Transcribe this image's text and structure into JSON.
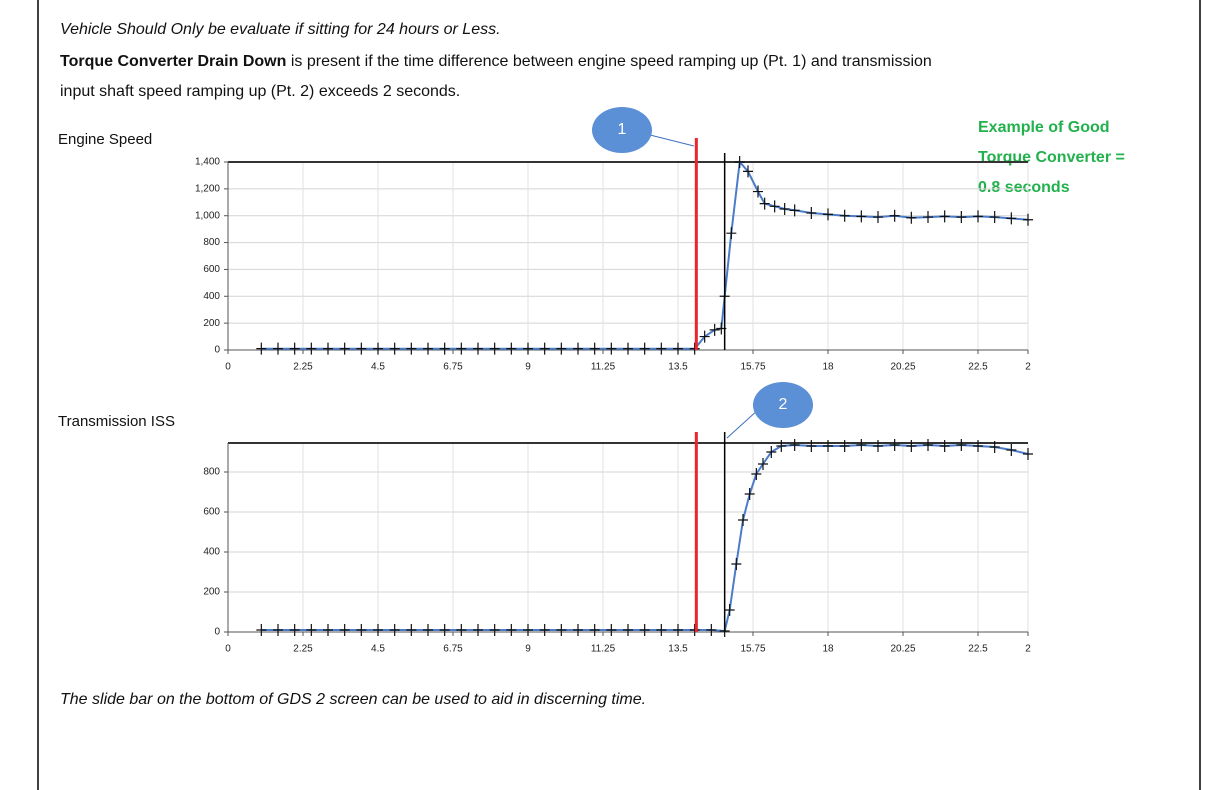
{
  "note": "Vehicle Should Only be evaluate if sitting for 24 hours or Less.",
  "definition": {
    "bold": "Torque Converter Drain Down",
    "rest": " is present if the time difference between engine speed ramping up (Pt. 1) and transmission",
    "line2": "input shaft speed ramping up (Pt. 2) exceeds 2 seconds."
  },
  "example": [
    "Example of Good",
    "Torque Converter =",
    "0.8 seconds"
  ],
  "footer": "The slide bar on the bottom of GDS 2 screen can be used to aid in discerning time.",
  "chart_data": [
    {
      "type": "line",
      "title": "Engine Speed",
      "annotation": "1",
      "xlim": [
        0,
        24
      ],
      "xticks": [
        0,
        2.25,
        4.5,
        6.75,
        9,
        11.25,
        13.5,
        15.75,
        18,
        20.25,
        22.5,
        {
          "value": 24,
          "label": "2"
        }
      ],
      "ylim": [
        0,
        1400
      ],
      "yticks": [
        0,
        200,
        400,
        600,
        800,
        {
          "value": 1000,
          "label": "1,000"
        },
        {
          "value": 1200,
          "label": "1,200"
        },
        {
          "value": 1400,
          "label": "1,400"
        }
      ],
      "grid": true,
      "vlines": [
        {
          "x": 14.05,
          "color": "#e8262b"
        },
        {
          "x": 14.9,
          "color": "#000000"
        }
      ],
      "series": [
        {
          "color": "#4a7cc9",
          "x": [
            1,
            1.5,
            2,
            2.5,
            3,
            3.5,
            4,
            4.5,
            5,
            5.5,
            6,
            6.5,
            7,
            7.5,
            8,
            8.5,
            9,
            9.5,
            10,
            10.5,
            11,
            11.5,
            12,
            12.5,
            13,
            13.5,
            14,
            14.3,
            14.6,
            14.8,
            14.9,
            15.1,
            15.35,
            15.6,
            15.9,
            16.1,
            16.4,
            16.7,
            17,
            17.5,
            18,
            18.5,
            19,
            19.5,
            20,
            20.5,
            21,
            21.5,
            22,
            22.5,
            23,
            23.5,
            24
          ],
          "values": [
            10,
            10,
            10,
            10,
            10,
            10,
            10,
            10,
            10,
            10,
            10,
            10,
            10,
            10,
            10,
            10,
            10,
            10,
            10,
            10,
            10,
            10,
            10,
            10,
            10,
            10,
            10,
            100,
            150,
            160,
            400,
            870,
            1400,
            1330,
            1180,
            1090,
            1070,
            1050,
            1040,
            1020,
            1010,
            1000,
            995,
            990,
            1000,
            985,
            990,
            995,
            990,
            995,
            990,
            980,
            970
          ]
        }
      ]
    },
    {
      "type": "line",
      "title": "Transmission  ISS",
      "annotation": "2",
      "xlim": [
        0,
        24
      ],
      "xticks": [
        0,
        2.25,
        4.5,
        6.75,
        9,
        11.25,
        13.5,
        15.75,
        18,
        20.25,
        22.5,
        {
          "value": 24,
          "label": "2"
        }
      ],
      "ylim": [
        0,
        945
      ],
      "yticks": [
        0,
        200,
        400,
        600,
        800
      ],
      "grid": true,
      "vlines": [
        {
          "x": 14.05,
          "color": "#e8262b"
        },
        {
          "x": 14.9,
          "color": "#000000"
        }
      ],
      "series": [
        {
          "color": "#4a7cc9",
          "x": [
            1,
            1.5,
            2,
            2.5,
            3,
            3.5,
            4,
            4.5,
            5,
            5.5,
            6,
            6.5,
            7,
            7.5,
            8,
            8.5,
            9,
            9.5,
            10,
            10.5,
            11,
            11.5,
            12,
            12.5,
            13,
            13.5,
            14,
            14.5,
            14.9,
            15.05,
            15.25,
            15.45,
            15.65,
            15.85,
            16.05,
            16.3,
            16.6,
            17,
            17.5,
            18,
            18.5,
            19,
            19.5,
            20,
            20.5,
            21,
            21.5,
            22,
            22.5,
            23,
            23.5,
            24
          ],
          "values": [
            10,
            10,
            10,
            10,
            10,
            10,
            10,
            10,
            10,
            10,
            10,
            10,
            10,
            10,
            10,
            10,
            10,
            10,
            10,
            10,
            10,
            10,
            10,
            10,
            10,
            10,
            10,
            10,
            5,
            110,
            340,
            560,
            690,
            790,
            840,
            900,
            930,
            935,
            930,
            930,
            930,
            935,
            930,
            935,
            930,
            935,
            930,
            935,
            930,
            925,
            910,
            890
          ]
        }
      ]
    }
  ]
}
